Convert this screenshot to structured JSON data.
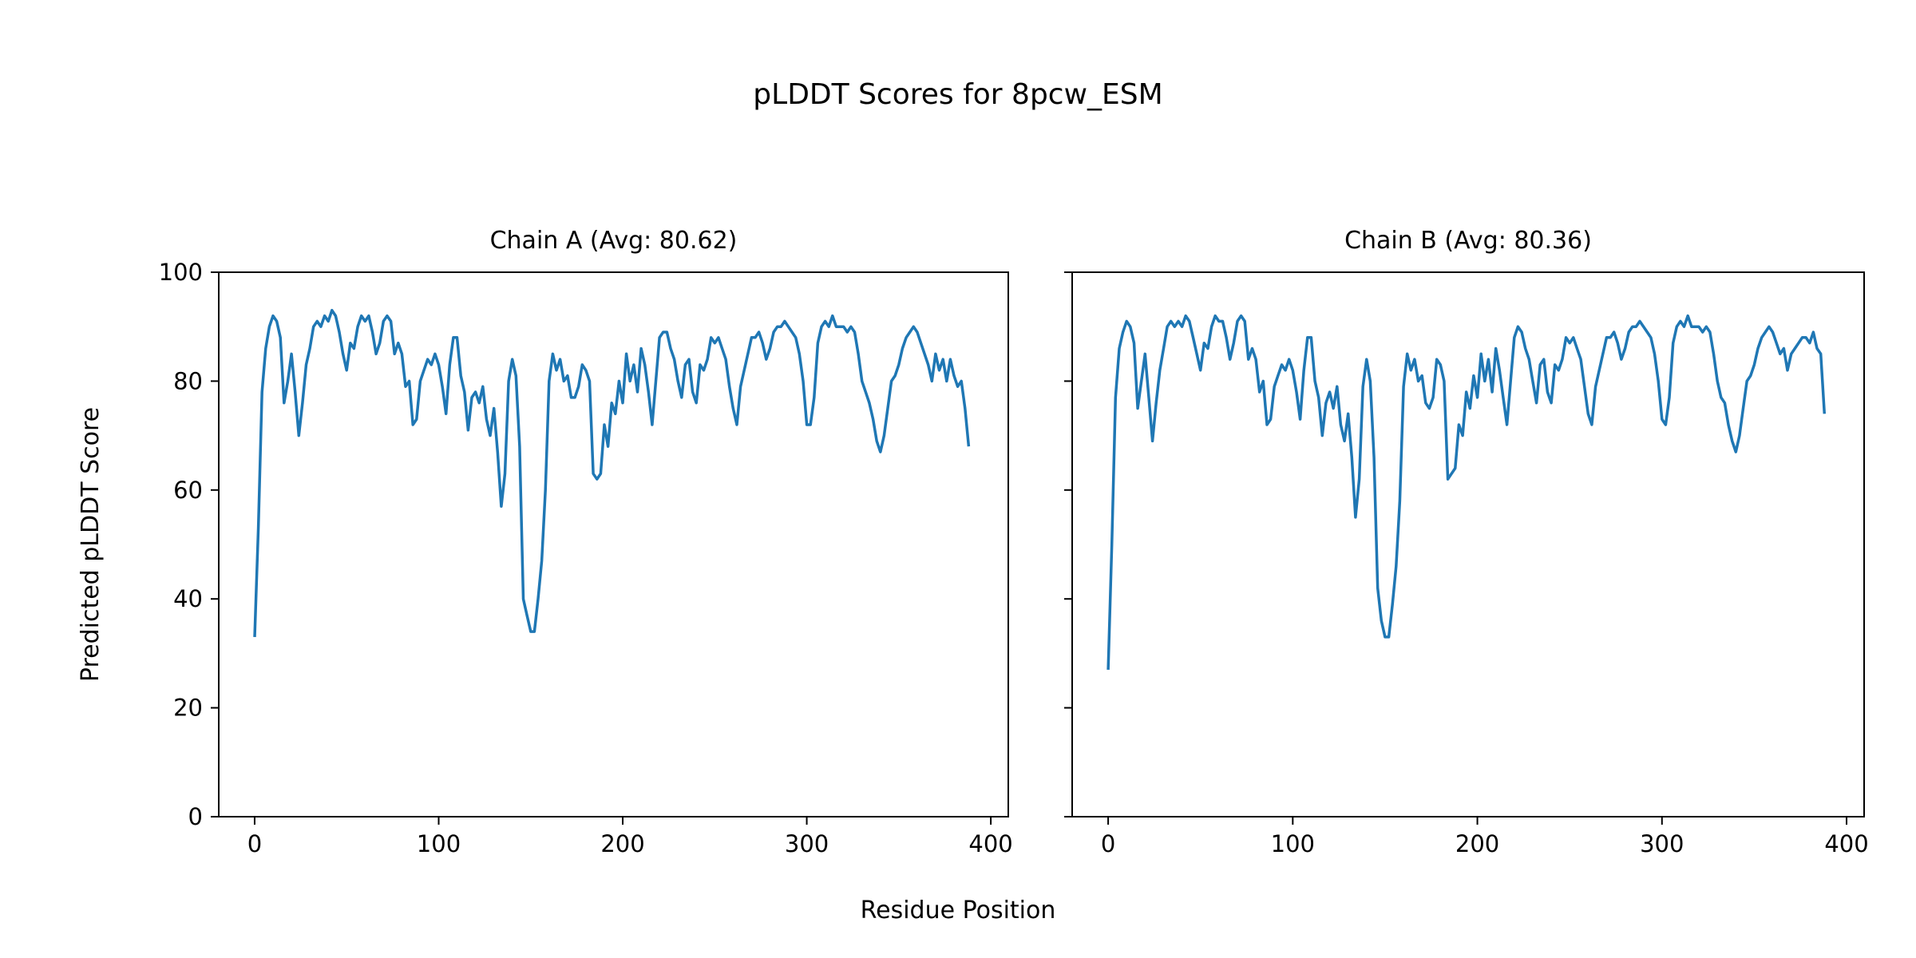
{
  "chart_data": {
    "type": "line",
    "title": "pLDDT Scores for 8pcw_ESM",
    "xlabel": "Residue Position",
    "ylabel": "Predicted pLDDT Score",
    "ylim": [
      0,
      100
    ],
    "xlim": [
      -19.5,
      409.5
    ],
    "xticks": [
      0,
      100,
      200,
      300,
      400
    ],
    "yticks": [
      0,
      20,
      40,
      60,
      80,
      100
    ],
    "grid": false,
    "line_color": "#1f77b4",
    "x_step": 2,
    "panels": [
      {
        "title": "Chain A (Avg: 80.62)",
        "values": [
          33,
          53,
          78,
          86,
          90,
          92,
          91,
          88,
          76,
          80,
          85,
          78,
          70,
          76,
          83,
          86,
          90,
          91,
          90,
          92,
          91,
          93,
          92,
          89,
          85,
          82,
          87,
          86,
          90,
          92,
          91,
          92,
          89,
          85,
          87,
          91,
          92,
          91,
          85,
          87,
          85,
          79,
          80,
          72,
          73,
          80,
          82,
          84,
          83,
          85,
          83,
          79,
          74,
          83,
          88,
          88,
          81,
          78,
          71,
          77,
          78,
          76,
          79,
          73,
          70,
          75,
          67,
          57,
          63,
          80,
          84,
          81,
          68,
          40,
          37,
          34,
          34,
          40,
          47,
          60,
          80,
          85,
          82,
          84,
          80,
          81,
          77,
          77,
          79,
          83,
          82,
          80,
          63,
          62,
          63,
          72,
          68,
          76,
          74,
          80,
          76,
          85,
          80,
          83,
          78,
          86,
          83,
          78,
          72,
          80,
          88,
          89,
          89,
          86,
          84,
          80,
          77,
          83,
          84,
          78,
          76,
          83,
          82,
          84,
          88,
          87,
          88,
          86,
          84,
          79,
          75,
          72,
          79,
          82,
          85,
          88,
          88,
          89,
          87,
          84,
          86,
          89,
          90,
          90,
          91,
          90,
          89,
          88,
          85,
          80,
          72,
          72,
          77,
          87,
          90,
          91,
          90,
          92,
          90,
          90,
          90,
          89,
          90,
          89,
          85,
          80,
          78,
          76,
          73,
          69,
          67,
          70,
          75,
          80,
          81,
          83,
          86,
          88,
          89,
          90,
          89,
          87,
          85,
          83,
          80,
          85,
          82,
          84,
          80,
          84,
          81,
          79,
          80,
          75,
          68
        ]
      },
      {
        "title": "Chain B (Avg: 80.36)",
        "values": [
          27,
          50,
          77,
          86,
          89,
          91,
          90,
          87,
          75,
          80,
          85,
          77,
          69,
          76,
          82,
          86,
          90,
          91,
          90,
          91,
          90,
          92,
          91,
          88,
          85,
          82,
          87,
          86,
          90,
          92,
          91,
          91,
          88,
          84,
          87,
          91,
          92,
          91,
          84,
          86,
          84,
          78,
          80,
          72,
          73,
          79,
          81,
          83,
          82,
          84,
          82,
          78,
          73,
          82,
          88,
          88,
          80,
          77,
          70,
          76,
          78,
          75,
          79,
          72,
          69,
          74,
          66,
          55,
          62,
          79,
          84,
          80,
          66,
          42,
          36,
          33,
          33,
          39,
          46,
          58,
          79,
          85,
          82,
          84,
          80,
          81,
          76,
          75,
          77,
          84,
          83,
          80,
          62,
          63,
          64,
          72,
          70,
          78,
          75,
          81,
          77,
          85,
          80,
          84,
          78,
          86,
          82,
          77,
          72,
          80,
          88,
          90,
          89,
          86,
          84,
          80,
          76,
          83,
          84,
          78,
          76,
          83,
          82,
          84,
          88,
          87,
          88,
          86,
          84,
          79,
          74,
          72,
          79,
          82,
          85,
          88,
          88,
          89,
          87,
          84,
          86,
          89,
          90,
          90,
          91,
          90,
          89,
          88,
          85,
          80,
          73,
          72,
          77,
          87,
          90,
          91,
          90,
          92,
          90,
          90,
          90,
          89,
          90,
          89,
          85,
          80,
          77,
          76,
          72,
          69,
          67,
          70,
          75,
          80,
          81,
          83,
          86,
          88,
          89,
          90,
          89,
          87,
          85,
          86,
          82,
          85,
          86,
          87,
          88,
          88,
          87,
          89,
          86,
          85,
          74
        ]
      }
    ]
  }
}
